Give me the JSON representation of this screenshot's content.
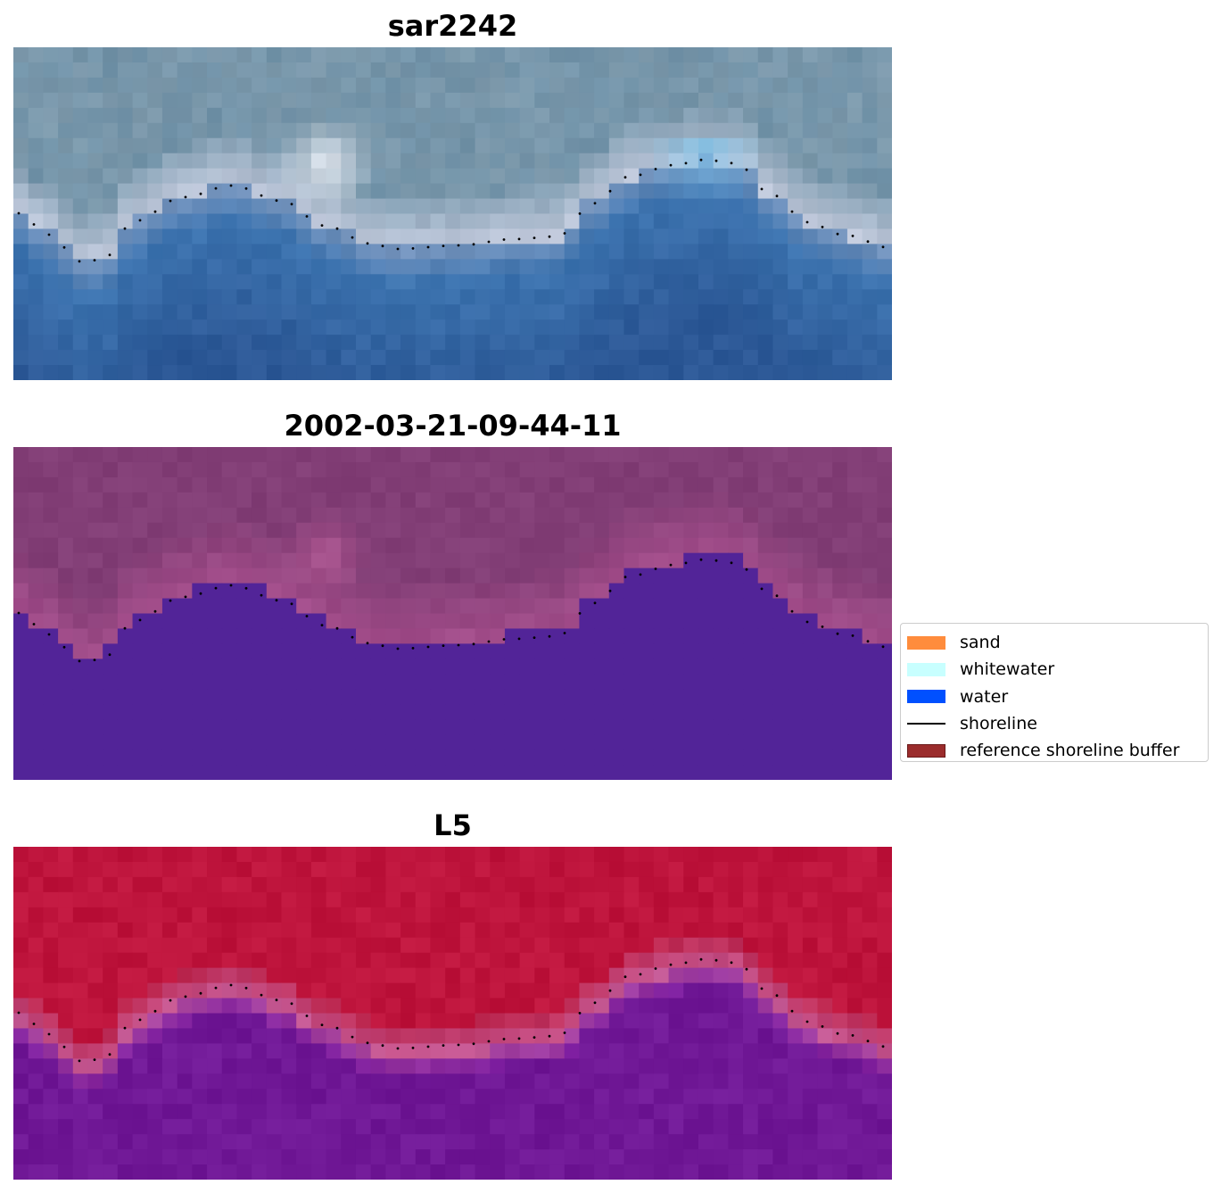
{
  "panels": [
    {
      "title": "sar2242"
    },
    {
      "title": "2002-03-21-09-44-11"
    },
    {
      "title": "L5"
    }
  ],
  "legend": {
    "items": [
      {
        "label": "sand",
        "color": "#ff8c3c",
        "kind": "patch"
      },
      {
        "label": "whitewater",
        "color": "#c8ffff",
        "kind": "patch"
      },
      {
        "label": "water",
        "color": "#0050ff",
        "kind": "patch"
      },
      {
        "label": "shoreline",
        "color": "#000000",
        "kind": "line"
      },
      {
        "label": "reference shoreline buffer",
        "color": "#9b2c2c",
        "kind": "patch"
      }
    ]
  }
}
